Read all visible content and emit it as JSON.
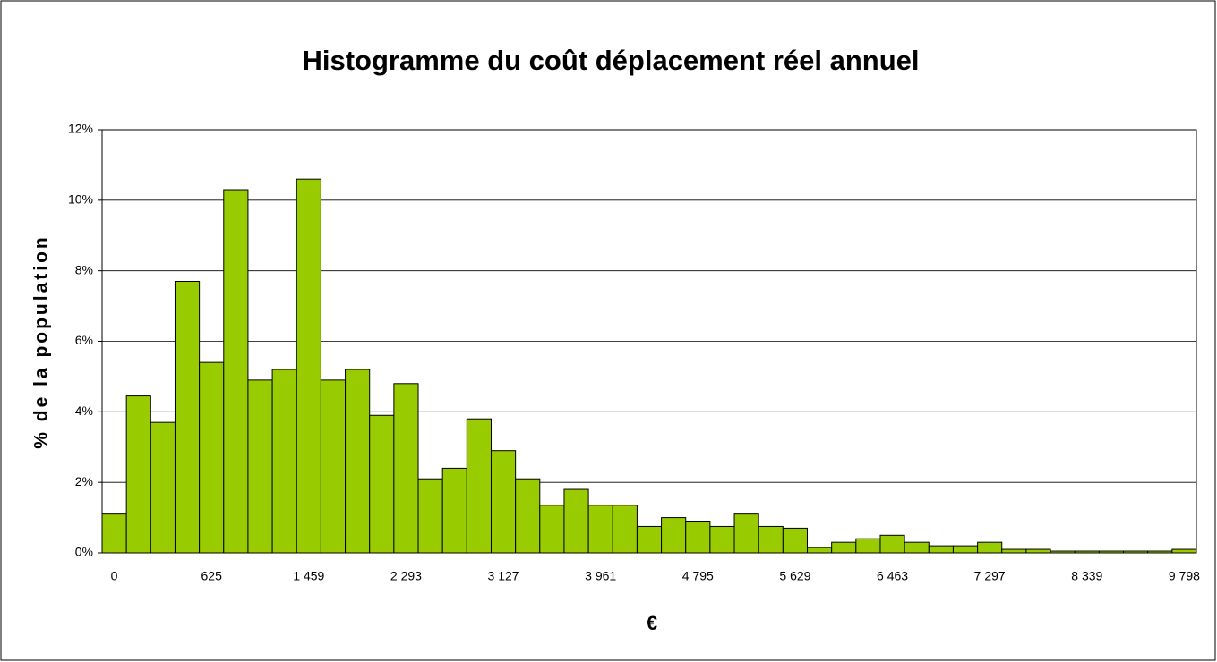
{
  "chart_data": {
    "type": "bar",
    "title": "Histogramme du coût déplacement réel annuel",
    "xlabel": "€",
    "ylabel": "% de la population",
    "categories": [
      "0",
      null,
      null,
      null,
      "625",
      null,
      null,
      null,
      "1 459",
      null,
      null,
      null,
      "2 293",
      null,
      null,
      null,
      "3 127",
      null,
      null,
      null,
      "3 961",
      null,
      null,
      null,
      "4 795",
      null,
      null,
      null,
      "5 629",
      null,
      null,
      null,
      "6 463",
      null,
      null,
      null,
      "7 297",
      null,
      null,
      null,
      "8 339",
      null,
      null,
      null,
      "9 798"
    ],
    "values": [
      1.1,
      4.45,
      3.7,
      7.7,
      5.4,
      10.3,
      4.9,
      5.2,
      10.6,
      4.9,
      5.2,
      3.9,
      4.8,
      2.1,
      2.4,
      3.8,
      2.9,
      2.1,
      1.35,
      1.8,
      1.35,
      1.35,
      0.75,
      1.0,
      0.9,
      0.75,
      1.1,
      0.75,
      0.7,
      0.15,
      0.3,
      0.4,
      0.5,
      0.3,
      0.2,
      0.2,
      0.3,
      0.1,
      0.1,
      0.05,
      0.05,
      0.05,
      0.05,
      0.05,
      0.1
    ],
    "color": "#99cc00",
    "ylim": [
      0,
      12
    ],
    "yticks": [
      {
        "value": 0,
        "label": "0%"
      },
      {
        "value": 2,
        "label": "2%"
      },
      {
        "value": 4,
        "label": "4%"
      },
      {
        "value": 6,
        "label": "6%"
      },
      {
        "value": 8,
        "label": "8%"
      },
      {
        "value": 10,
        "label": "10%"
      },
      {
        "value": 12,
        "label": "12%"
      }
    ],
    "grid": true
  }
}
